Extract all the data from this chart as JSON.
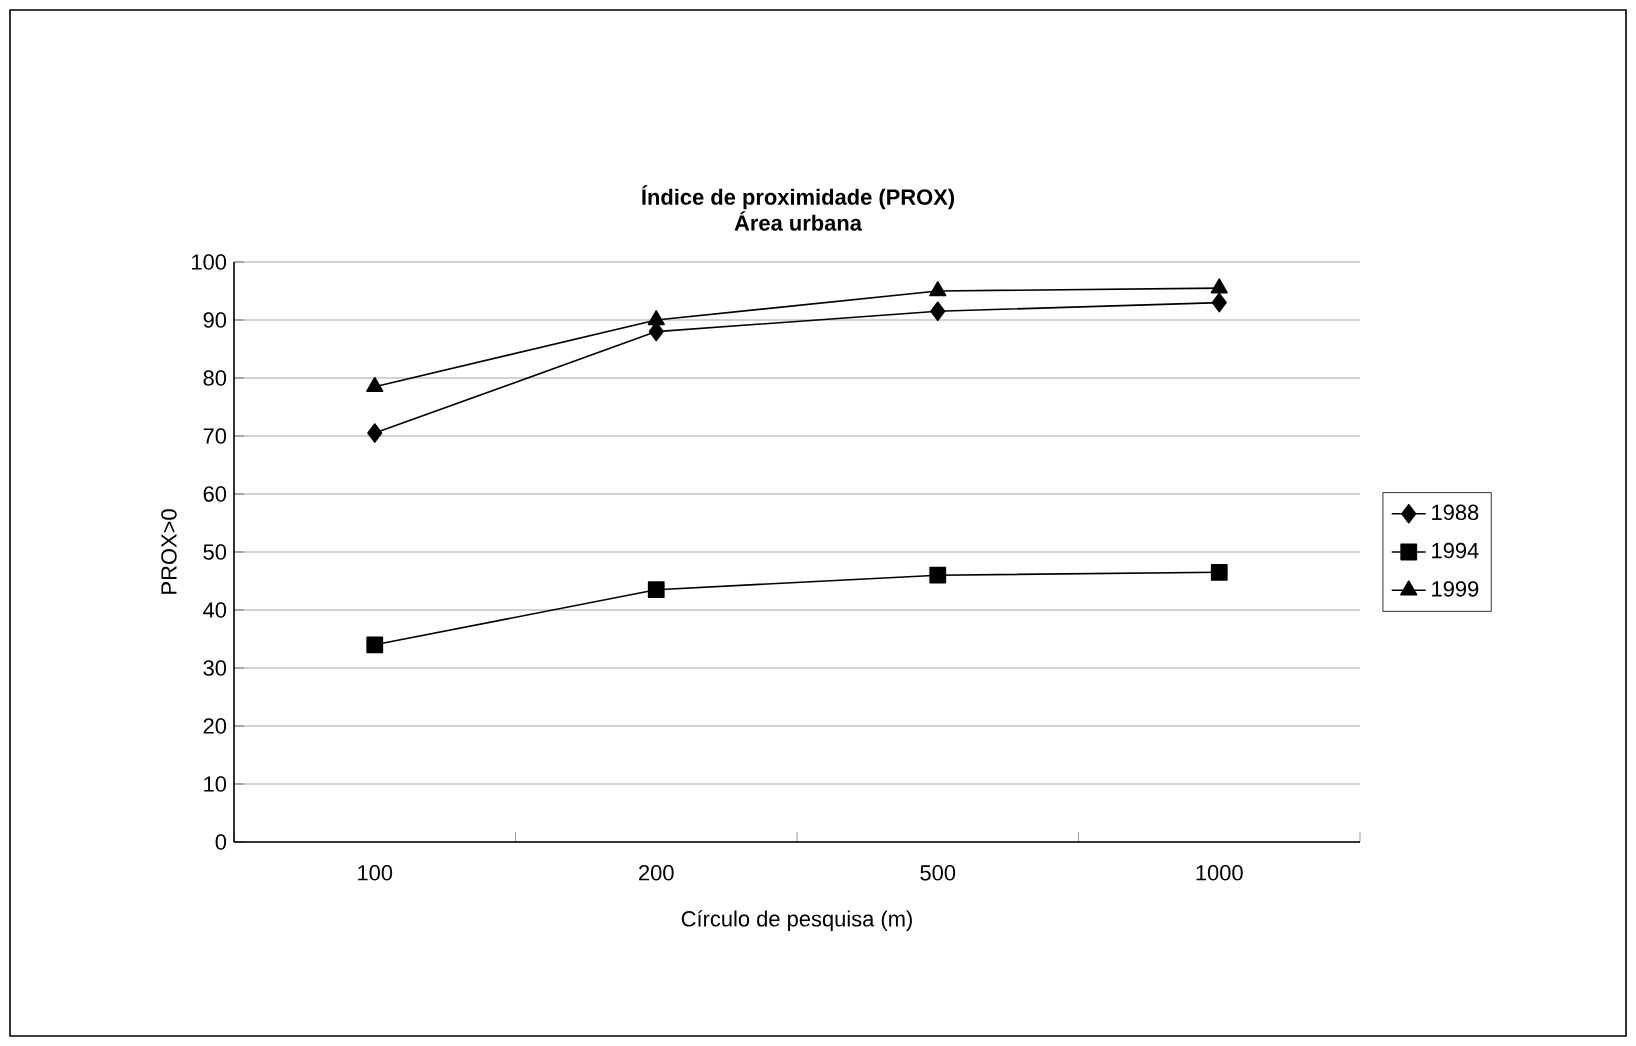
{
  "chart_data": {
    "type": "line",
    "title": "Índice de proximidade (PROX)",
    "subtitle": "Área urbana",
    "xlabel": "Círculo de pesquisa (m)",
    "ylabel": "PROX>0",
    "categories": [
      "100",
      "200",
      "500",
      "1000"
    ],
    "series": [
      {
        "name": "1988",
        "color": "#000000",
        "marker": "diamond",
        "values": [
          70.5,
          88,
          91.5,
          93
        ]
      },
      {
        "name": "1994",
        "color": "#000000",
        "marker": "square",
        "values": [
          34,
          43.5,
          46,
          46.5
        ]
      },
      {
        "name": "1999",
        "color": "#000000",
        "marker": "triangle",
        "values": [
          78.5,
          90,
          95,
          95.5
        ]
      }
    ],
    "ylim": [
      0,
      100
    ],
    "yticks": [
      0,
      10,
      20,
      30,
      40,
      50,
      60,
      70,
      80,
      90,
      100
    ],
    "grid": "y",
    "legend": "right",
    "line_style": "solid"
  }
}
